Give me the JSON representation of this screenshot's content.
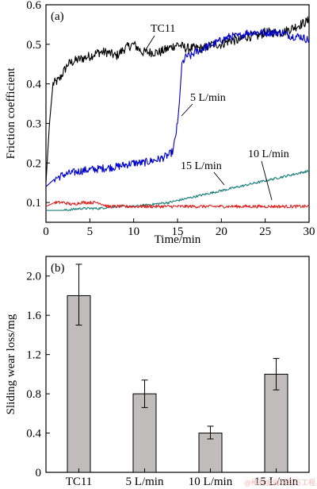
{
  "chart_data": [
    {
      "type": "line",
      "panel_label": "(a)",
      "xlabel": "Time/min",
      "ylabel": "Friction coefficient",
      "xlim": [
        0,
        30
      ],
      "ylim": [
        0.05,
        0.6
      ],
      "x_ticks": [
        0,
        5,
        10,
        15,
        20,
        25,
        30
      ],
      "y_ticks": [
        0.1,
        0.2,
        0.3,
        0.4,
        0.5,
        0.6
      ],
      "grid": false,
      "legend": "none",
      "series": [
        {
          "name": "TC11",
          "color": "#000000",
          "x": [
            0,
            0.4,
            0.8,
            1.5,
            2.5,
            3.5,
            5,
            6,
            7,
            8,
            9,
            10,
            11,
            12,
            13,
            14,
            15,
            16,
            17,
            18,
            19,
            20,
            21,
            22,
            23,
            24,
            25,
            26,
            27,
            28,
            29,
            30
          ],
          "y": [
            0.15,
            0.3,
            0.4,
            0.41,
            0.45,
            0.46,
            0.47,
            0.48,
            0.48,
            0.47,
            0.49,
            0.5,
            0.48,
            0.48,
            0.48,
            0.49,
            0.5,
            0.49,
            0.49,
            0.49,
            0.5,
            0.5,
            0.51,
            0.51,
            0.52,
            0.52,
            0.53,
            0.53,
            0.53,
            0.54,
            0.55,
            0.56
          ]
        },
        {
          "name": "5 L/min",
          "color": "#0000cc",
          "x": [
            0,
            1,
            2,
            3,
            4,
            5,
            6,
            7,
            8,
            9,
            10,
            11,
            12,
            13,
            14,
            14.5,
            15,
            15.2,
            15.5,
            16,
            16.5,
            17,
            18,
            19,
            20,
            21,
            22,
            23,
            24,
            25,
            26,
            27,
            28,
            29,
            30
          ],
          "y": [
            0.14,
            0.16,
            0.17,
            0.175,
            0.18,
            0.183,
            0.185,
            0.188,
            0.19,
            0.195,
            0.2,
            0.2,
            0.205,
            0.21,
            0.22,
            0.23,
            0.3,
            0.35,
            0.45,
            0.47,
            0.47,
            0.48,
            0.49,
            0.5,
            0.51,
            0.52,
            0.52,
            0.53,
            0.53,
            0.53,
            0.53,
            0.53,
            0.52,
            0.52,
            0.51
          ]
        },
        {
          "name": "15 L/min",
          "color": "#1a7f78",
          "x": [
            0,
            2,
            4,
            6,
            8,
            10,
            12,
            14,
            16,
            18,
            20,
            22,
            24,
            26,
            28,
            30
          ],
          "y": [
            0.08,
            0.08,
            0.085,
            0.085,
            0.09,
            0.09,
            0.095,
            0.1,
            0.11,
            0.12,
            0.13,
            0.14,
            0.15,
            0.16,
            0.17,
            0.18
          ]
        },
        {
          "name": "10 L/min",
          "color": "#dd2222",
          "x": [
            0,
            1,
            2,
            3,
            4,
            5,
            6,
            7,
            8,
            10,
            12,
            14,
            16,
            18,
            20,
            22,
            24,
            26,
            28,
            30
          ],
          "y": [
            0.09,
            0.1,
            0.1,
            0.095,
            0.1,
            0.1,
            0.1,
            0.09,
            0.09,
            0.09,
            0.09,
            0.09,
            0.09,
            0.09,
            0.09,
            0.09,
            0.09,
            0.09,
            0.09,
            0.09
          ]
        }
      ],
      "annotations": [
        {
          "text": "TC11",
          "series": "TC11"
        },
        {
          "text": "5 L/min",
          "series": "5 L/min"
        },
        {
          "text": "15 L/min",
          "series": "15 L/min"
        },
        {
          "text": "10 L/min",
          "series": "10 L/min"
        }
      ]
    },
    {
      "type": "bar",
      "panel_label": "(b)",
      "xlabel": "",
      "ylabel": "Sliding wear loss/mg",
      "categories": [
        "TC11",
        "5 L/min",
        "10 L/min",
        "15 L/min"
      ],
      "values": [
        1.8,
        0.8,
        0.4,
        1.0
      ],
      "error_low": [
        1.5,
        0.66,
        0.34,
        0.84
      ],
      "error_high": [
        2.12,
        0.94,
        0.47,
        1.16
      ],
      "ylim": [
        0,
        2.2
      ],
      "y_ticks": [
        0,
        0.4,
        0.8,
        1.2,
        1.6,
        2.0
      ],
      "y_tick_labels": [
        "0",
        "0.4",
        "0.8",
        "1.2",
        "1.6",
        "2.0"
      ],
      "bar_color": "#c0bcbc",
      "grid": false,
      "legend": "none"
    }
  ],
  "watermark": "@稀有金属材料与工程"
}
